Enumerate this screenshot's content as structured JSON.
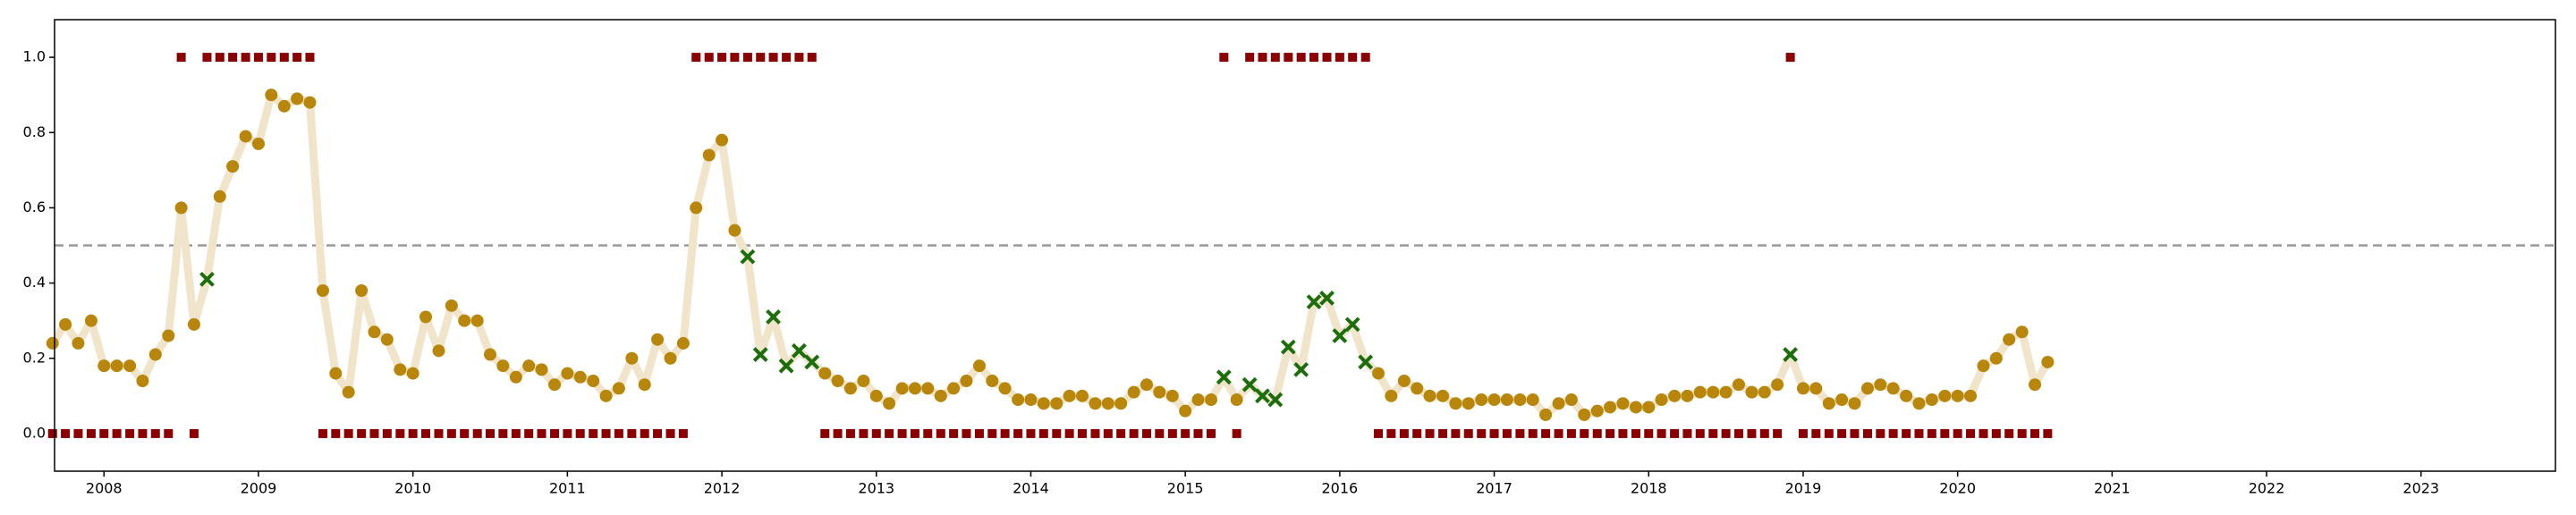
{
  "chart_data": {
    "type": "line",
    "x": [
      2007.667,
      2007.75,
      2007.833,
      2007.917,
      2008,
      2008.083,
      2008.167,
      2008.25,
      2008.333,
      2008.417,
      2008.5,
      2008.583,
      2008.667,
      2008.75,
      2008.833,
      2008.917,
      2009,
      2009.083,
      2009.167,
      2009.25,
      2009.333,
      2009.417,
      2009.5,
      2009.583,
      2009.667,
      2009.75,
      2009.833,
      2009.917,
      2010,
      2010.083,
      2010.167,
      2010.25,
      2010.333,
      2010.417,
      2010.5,
      2010.583,
      2010.667,
      2010.75,
      2010.833,
      2010.917,
      2011,
      2011.083,
      2011.167,
      2011.25,
      2011.333,
      2011.417,
      2011.5,
      2011.583,
      2011.667,
      2011.75,
      2011.833,
      2011.917,
      2012,
      2012.083,
      2012.167,
      2012.25,
      2012.333,
      2012.417,
      2012.5,
      2012.583,
      2012.667,
      2012.75,
      2012.833,
      2012.917,
      2013,
      2013.083,
      2013.167,
      2013.25,
      2013.333,
      2013.417,
      2013.5,
      2013.583,
      2013.667,
      2013.75,
      2013.833,
      2013.917,
      2014,
      2014.083,
      2014.167,
      2014.25,
      2014.333,
      2014.417,
      2014.5,
      2014.583,
      2014.667,
      2014.75,
      2014.833,
      2014.917,
      2015,
      2015.083,
      2015.167,
      2015.25,
      2015.333,
      2015.417,
      2015.5,
      2015.583,
      2015.667,
      2015.75,
      2015.833,
      2015.917,
      2016,
      2016.083,
      2016.167,
      2016.25,
      2016.333,
      2016.417,
      2016.5,
      2016.583,
      2016.667,
      2016.75,
      2016.833,
      2016.917,
      2017,
      2017.083,
      2017.167,
      2017.25,
      2017.333,
      2017.417,
      2017.5,
      2017.583,
      2017.667,
      2017.75,
      2017.833,
      2017.917,
      2018,
      2018.083,
      2018.167,
      2018.25,
      2018.333,
      2018.417,
      2018.5,
      2018.583,
      2018.667,
      2018.75,
      2018.833,
      2018.917,
      2019,
      2019.083,
      2019.167,
      2019.25,
      2019.333,
      2019.417,
      2019.5,
      2019.583,
      2019.667,
      2019.75,
      2019.833,
      2019.917,
      2020,
      2020.083,
      2020.167,
      2020.25,
      2020.333,
      2020.417,
      2020.5,
      2020.583
    ],
    "xlim": [
      2007.68,
      2023.87
    ],
    "xticks": [
      2008,
      2009,
      2010,
      2011,
      2012,
      2013,
      2014,
      2015,
      2016,
      2017,
      2018,
      2019,
      2020,
      2021,
      2022,
      2023
    ],
    "ylim": [
      -0.1,
      1.1
    ],
    "yticks": [
      {
        "value": 0,
        "label": "0.0"
      },
      {
        "value": 0.2,
        "label": "0.2"
      },
      {
        "value": 0.4,
        "label": "0.4"
      },
      {
        "value": 0.6,
        "label": "0.6"
      },
      {
        "value": 0.8,
        "label": "0.8"
      },
      {
        "value": 1,
        "label": "1.0"
      }
    ],
    "grid": false,
    "hlines": [
      {
        "value": 0.5,
        "color": "#999999",
        "dashed": true
      }
    ],
    "series": [
      {
        "color": "#b8860b",
        "line_color": "#f0e4cb",
        "marker_colors": {
          "o": "#b8860b",
          "x": "#1b6e0b"
        },
        "markers": [
          "o",
          "o",
          "o",
          "o",
          "o",
          "o",
          "o",
          "o",
          "o",
          "o",
          "o",
          "o",
          "x",
          "o",
          "o",
          "o",
          "o",
          "o",
          "o",
          "o",
          "o",
          "o",
          "o",
          "o",
          "o",
          "o",
          "o",
          "o",
          "o",
          "o",
          "o",
          "o",
          "o",
          "o",
          "o",
          "o",
          "o",
          "o",
          "o",
          "o",
          "o",
          "o",
          "o",
          "o",
          "o",
          "o",
          "o",
          "o",
          "o",
          "o",
          "o",
          "o",
          "o",
          "o",
          "x",
          "x",
          "x",
          "x",
          "x",
          "x",
          "o",
          "o",
          "o",
          "o",
          "o",
          "o",
          "o",
          "o",
          "o",
          "o",
          "o",
          "o",
          "o",
          "o",
          "o",
          "o",
          "o",
          "o",
          "o",
          "o",
          "o",
          "o",
          "o",
          "o",
          "o",
          "o",
          "o",
          "o",
          "o",
          "o",
          "o",
          "x",
          "o",
          "x",
          "x",
          "x",
          "x",
          "x",
          "x",
          "x",
          "x",
          "x",
          "x",
          "o",
          "o",
          "o",
          "o",
          "o",
          "o",
          "o",
          "o",
          "o",
          "o",
          "o",
          "o",
          "o",
          "o",
          "o",
          "o",
          "o",
          "o",
          "o",
          "o",
          "o",
          "o",
          "o",
          "o",
          "o",
          "o",
          "o",
          "o",
          "o",
          "o",
          "o",
          "o",
          "x",
          "o",
          "o",
          "o",
          "o",
          "o",
          "o",
          "o",
          "o",
          "o",
          "o",
          "o",
          "o",
          "o",
          "o",
          "o",
          "o",
          "o",
          "o",
          "o",
          "o"
        ],
        "values": [
          0.24,
          0.29,
          0.24,
          0.3,
          0.18,
          0.18,
          0.18,
          0.14,
          0.21,
          0.26,
          0.6,
          0.29,
          0.41,
          0.63,
          0.71,
          0.79,
          0.77,
          0.9,
          0.87,
          0.89,
          0.88,
          0.38,
          0.16,
          0.11,
          0.38,
          0.27,
          0.25,
          0.17,
          0.16,
          0.31,
          0.22,
          0.34,
          0.3,
          0.3,
          0.21,
          0.18,
          0.15,
          0.18,
          0.17,
          0.13,
          0.16,
          0.15,
          0.14,
          0.1,
          0.12,
          0.2,
          0.13,
          0.25,
          0.2,
          0.24,
          0.6,
          0.74,
          0.78,
          0.54,
          0.47,
          0.21,
          0.31,
          0.18,
          0.22,
          0.19,
          0.16,
          0.14,
          0.12,
          0.14,
          0.1,
          0.08,
          0.12,
          0.12,
          0.12,
          0.1,
          0.12,
          0.14,
          0.18,
          0.14,
          0.12,
          0.09,
          0.09,
          0.08,
          0.08,
          0.1,
          0.1,
          0.08,
          0.08,
          0.08,
          0.11,
          0.13,
          0.11,
          0.1,
          0.06,
          0.09,
          0.09,
          0.15,
          0.09,
          0.13,
          0.1,
          0.09,
          0.23,
          0.17,
          0.35,
          0.36,
          0.26,
          0.29,
          0.19,
          0.16,
          0.1,
          0.14,
          0.12,
          0.1,
          0.1,
          0.08,
          0.08,
          0.09,
          0.09,
          0.09,
          0.09,
          0.09,
          0.05,
          0.08,
          0.09,
          0.05,
          0.06,
          0.07,
          0.08,
          0.07,
          0.07,
          0.09,
          0.1,
          0.1,
          0.11,
          0.11,
          0.11,
          0.13,
          0.11,
          0.11,
          0.13,
          0.21,
          0.12,
          0.12,
          0.08,
          0.09,
          0.08,
          0.12,
          0.13,
          0.12,
          0.1,
          0.08,
          0.09,
          0.1,
          0.1,
          0.1,
          0.18,
          0.2,
          0.25,
          0.27,
          0.13,
          0.19
        ]
      },
      {
        "color": "#8b0000",
        "marker": "s",
        "values": [
          0,
          0,
          0,
          0,
          0,
          0,
          0,
          0,
          0,
          0,
          1,
          0,
          1,
          1,
          1,
          1,
          1,
          1,
          1,
          1,
          1,
          0,
          0,
          0,
          0,
          0,
          0,
          0,
          0,
          0,
          0,
          0,
          0,
          0,
          0,
          0,
          0,
          0,
          0,
          0,
          0,
          0,
          0,
          0,
          0,
          0,
          0,
          0,
          0,
          0,
          1,
          1,
          1,
          1,
          1,
          1,
          1,
          1,
          1,
          1,
          0,
          0,
          0,
          0,
          0,
          0,
          0,
          0,
          0,
          0,
          0,
          0,
          0,
          0,
          0,
          0,
          0,
          0,
          0,
          0,
          0,
          0,
          0,
          0,
          0,
          0,
          0,
          0,
          0,
          0,
          0,
          1,
          0,
          1,
          1,
          1,
          1,
          1,
          1,
          1,
          1,
          1,
          1,
          0,
          0,
          0,
          0,
          0,
          0,
          0,
          0,
          0,
          0,
          0,
          0,
          0,
          0,
          0,
          0,
          0,
          0,
          0,
          0,
          0,
          0,
          0,
          0,
          0,
          0,
          0,
          0,
          0,
          0,
          0,
          0,
          1,
          0,
          0,
          0,
          0,
          0,
          0,
          0,
          0,
          0,
          0,
          0,
          0,
          0,
          0,
          0,
          0,
          0,
          0,
          0,
          0
        ]
      }
    ]
  }
}
